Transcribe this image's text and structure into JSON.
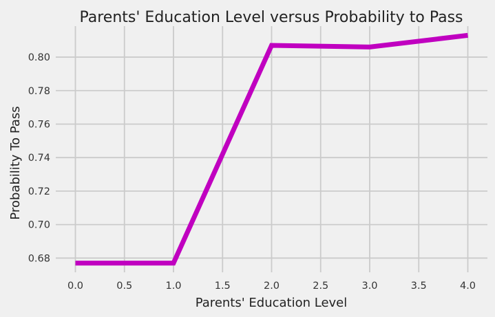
{
  "chart_data": {
    "type": "line",
    "title": "Parents' Education Level versus Probability to Pass",
    "xlabel": "Parents' Education Level",
    "ylabel": "Probability To Pass",
    "x": [
      0,
      1,
      2,
      3,
      4
    ],
    "series": [
      {
        "values": [
          0.677,
          0.677,
          0.807,
          0.806,
          0.813
        ],
        "color": "#c000c0"
      }
    ],
    "xlim": [
      -0.2,
      4.2
    ],
    "ylim": [
      0.6715,
      0.8185
    ],
    "xticks": [
      0.0,
      0.5,
      1.0,
      1.5,
      2.0,
      2.5,
      3.0,
      3.5,
      4.0
    ],
    "xtick_labels": [
      "0.0",
      "0.5",
      "1.0",
      "1.5",
      "2.0",
      "2.5",
      "3.0",
      "3.5",
      "4.0"
    ],
    "yticks": [
      0.68,
      0.7,
      0.72,
      0.74,
      0.76,
      0.78,
      0.8
    ],
    "ytick_labels": [
      "0.68",
      "0.70",
      "0.72",
      "0.74",
      "0.76",
      "0.78",
      "0.80"
    ],
    "grid": true,
    "background": "#f0f0f0",
    "grid_color": "#cbcbcb"
  }
}
